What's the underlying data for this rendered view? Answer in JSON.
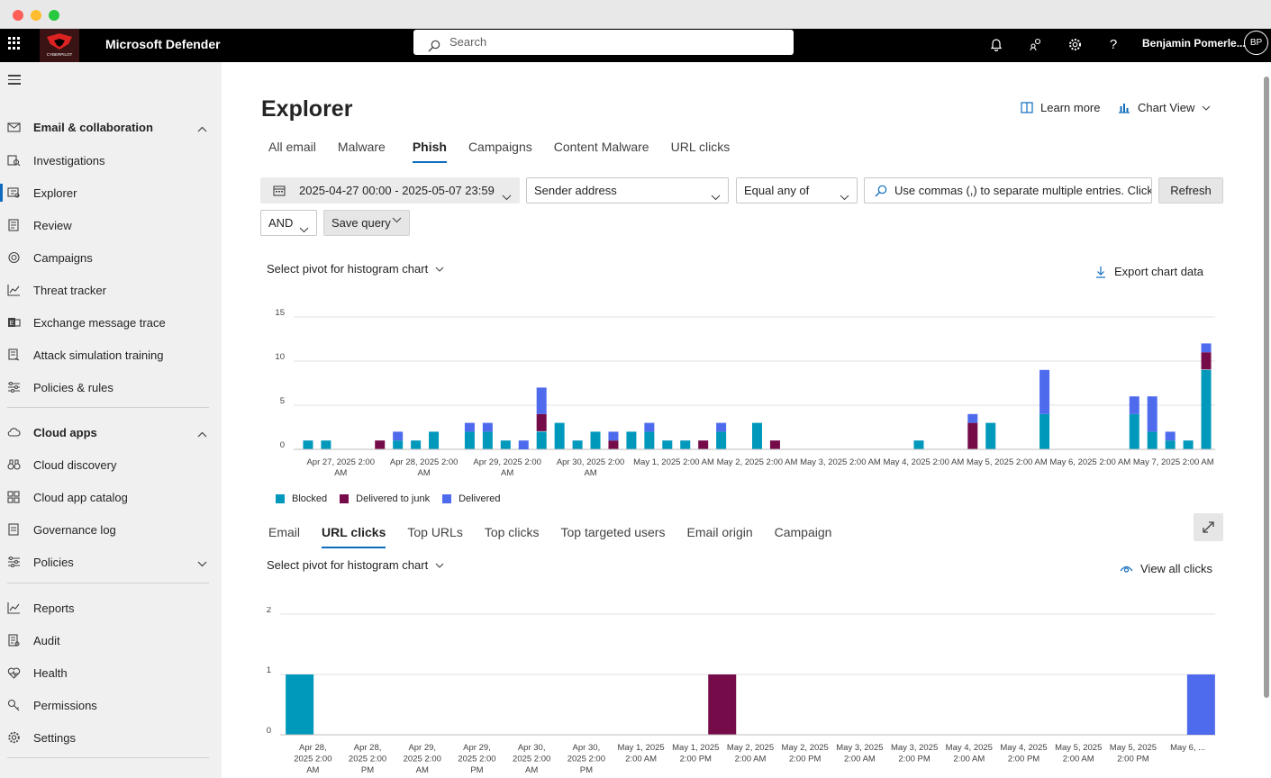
{
  "topbar": {
    "app_title": "Microsoft Defender",
    "logo_text": "CYBERPILOT",
    "search_placeholder": "Search",
    "user_name": "Benjamin Pomerle...",
    "user_initials": "BP"
  },
  "sidebar": {
    "items": [
      {
        "label": "Email & collaboration",
        "icon": "mail-icon",
        "section": true,
        "expanded": true
      },
      {
        "label": "Investigations",
        "icon": "investigation-icon"
      },
      {
        "label": "Explorer",
        "icon": "explorer-icon",
        "active": true
      },
      {
        "label": "Review",
        "icon": "review-icon"
      },
      {
        "label": "Campaigns",
        "icon": "target-icon"
      },
      {
        "label": "Threat tracker",
        "icon": "chart-line-icon"
      },
      {
        "label": "Exchange message trace",
        "icon": "exchange-icon"
      },
      {
        "label": "Attack simulation training",
        "icon": "simulation-icon"
      },
      {
        "label": "Policies & rules",
        "icon": "sliders-icon"
      },
      {
        "label": "Cloud apps",
        "icon": "cloud-icon",
        "section": true,
        "expanded": true
      },
      {
        "label": "Cloud discovery",
        "icon": "binoculars-icon"
      },
      {
        "label": "Cloud app catalog",
        "icon": "catalog-icon"
      },
      {
        "label": "Governance log",
        "icon": "log-icon"
      },
      {
        "label": "Policies",
        "icon": "sliders-icon",
        "collapsible": true
      },
      {
        "label": "Reports",
        "icon": "chart-line-icon"
      },
      {
        "label": "Audit",
        "icon": "audit-icon"
      },
      {
        "label": "Health",
        "icon": "heart-icon"
      },
      {
        "label": "Permissions",
        "icon": "key-icon"
      },
      {
        "label": "Settings",
        "icon": "gear-icon"
      }
    ]
  },
  "main": {
    "title": "Explorer",
    "learn_more": "Learn more",
    "chart_view": "Chart View",
    "tabs": [
      {
        "label": "All email"
      },
      {
        "label": "Malware"
      },
      {
        "label": "Phish",
        "active": true
      },
      {
        "label": "Campaigns"
      },
      {
        "label": "Content Malware"
      },
      {
        "label": "URL clicks"
      }
    ],
    "filters": {
      "date_range": "2025-04-27 00:00 - 2025-05-07 23:59",
      "field": "Sender address",
      "operator": "Equal any of",
      "value_placeholder": "Use commas (,) to separate multiple entries. Click ...",
      "refresh": "Refresh",
      "logic": "AND",
      "save_query": "Save query"
    },
    "pivot_label": "Select pivot for histogram chart",
    "export_label": "Export chart data",
    "sub_tabs": [
      {
        "label": "Email"
      },
      {
        "label": "URL clicks",
        "active": true
      },
      {
        "label": "Top URLs"
      },
      {
        "label": "Top clicks"
      },
      {
        "label": "Top targeted users"
      },
      {
        "label": "Email origin"
      },
      {
        "label": "Campaign"
      }
    ],
    "pivot_label_2": "Select pivot for histogram chart",
    "view_all_clicks": "View all clicks"
  },
  "colors": {
    "blocked": "#0099bc",
    "junk": "#750b49",
    "delivered": "#4f6bed",
    "accent": "#0f6cbd"
  },
  "chart_data": [
    {
      "type": "bar",
      "stacked": true,
      "ylim": [
        0,
        15
      ],
      "yticks": [
        0,
        5,
        10,
        15
      ],
      "x_tick_labels": [
        [
          "Apr 27, 2025 2:00",
          "AM"
        ],
        [
          "Apr 28, 2025 2:00",
          "AM"
        ],
        [
          "Apr 29, 2025 2:00",
          "AM"
        ],
        [
          "Apr 30, 2025 2:00",
          "AM"
        ],
        [
          "May 1, 2025 2:00 AM"
        ],
        [
          "May 2, 2025 2:00 AM"
        ],
        [
          "May 3, 2025 2:00 AM"
        ],
        [
          "May 4, 2025 2:00 AM"
        ],
        [
          "May 5, 2025 2:00 AM"
        ],
        [
          "May 6, 2025 2:00 AM"
        ],
        [
          "May 7, 2025 2:00 AM"
        ]
      ],
      "legend": [
        "Blocked",
        "Delivered to junk",
        "Delivered"
      ],
      "series": [
        {
          "name": "Blocked",
          "values": [
            1,
            1,
            0,
            0,
            0,
            1,
            1,
            2,
            0,
            2,
            2,
            1,
            0,
            2,
            3,
            1,
            2,
            0,
            2,
            2,
            1,
            1,
            0,
            2,
            0,
            3,
            0,
            0,
            0,
            0,
            0,
            0,
            0,
            0,
            1,
            0,
            0,
            0,
            3,
            0,
            0,
            4,
            0,
            0,
            0,
            0,
            4,
            2,
            1,
            1,
            9
          ]
        },
        {
          "name": "Delivered to junk",
          "values": [
            0,
            0,
            0,
            0,
            1,
            0,
            0,
            0,
            0,
            0,
            0,
            0,
            0,
            2,
            0,
            0,
            0,
            1,
            0,
            0,
            0,
            0,
            1,
            0,
            0,
            0,
            1,
            0,
            0,
            0,
            0,
            0,
            0,
            0,
            0,
            0,
            0,
            3,
            0,
            0,
            0,
            0,
            0,
            0,
            0,
            0,
            0,
            0,
            0,
            0,
            2
          ]
        },
        {
          "name": "Delivered",
          "values": [
            0,
            0,
            0,
            0,
            0,
            1,
            0,
            0,
            0,
            1,
            1,
            0,
            1,
            3,
            0,
            0,
            0,
            1,
            0,
            1,
            0,
            0,
            0,
            1,
            0,
            0,
            0,
            0,
            0,
            0,
            0,
            0,
            0,
            0,
            0,
            0,
            0,
            1,
            0,
            0,
            0,
            5,
            0,
            0,
            0,
            0,
            2,
            4,
            1,
            0,
            1
          ]
        }
      ]
    },
    {
      "type": "bar",
      "stacked": true,
      "ylim": [
        0,
        2
      ],
      "yticks": [
        0,
        1,
        2
      ],
      "x_tick_labels": [
        [
          "Apr 28,",
          "2025 2:00",
          "AM"
        ],
        [
          "Apr 28,",
          "2025 2:00",
          "PM"
        ],
        [
          "Apr 29,",
          "2025 2:00",
          "AM"
        ],
        [
          "Apr 29,",
          "2025 2:00",
          "PM"
        ],
        [
          "Apr 30,",
          "2025 2:00",
          "AM"
        ],
        [
          "Apr 30,",
          "2025 2:00",
          "PM"
        ],
        [
          "May 1, 2025",
          "2:00 AM"
        ],
        [
          "May 1, 2025",
          "2:00 PM"
        ],
        [
          "May 2, 2025",
          "2:00 AM"
        ],
        [
          "May 2, 2025",
          "2:00 PM"
        ],
        [
          "May 3, 2025",
          "2:00 AM"
        ],
        [
          "May 3, 2025",
          "2:00 PM"
        ],
        [
          "May 4, 2025",
          "2:00 AM"
        ],
        [
          "May 4, 2025",
          "2:00 PM"
        ],
        [
          "May 5, 2025",
          "2:00 AM"
        ],
        [
          "May 5, 2025",
          "2:00 PM"
        ],
        [
          "May 6, ..."
        ]
      ],
      "series": [
        {
          "name": "Blocked",
          "values": [
            1,
            0,
            0,
            0,
            0,
            0,
            0,
            0,
            0,
            0,
            0,
            0,
            0,
            0,
            0,
            0,
            0,
            0,
            0,
            0,
            0,
            0,
            0,
            0,
            0,
            0,
            0,
            0,
            0,
            0,
            0,
            0,
            0
          ]
        },
        {
          "name": "Delivered to junk",
          "values": [
            0,
            0,
            0,
            0,
            0,
            0,
            0,
            0,
            0,
            0,
            0,
            0,
            0,
            0,
            0,
            1,
            0,
            0,
            0,
            0,
            0,
            0,
            0,
            0,
            0,
            0,
            0,
            0,
            0,
            0,
            0,
            0,
            0
          ]
        },
        {
          "name": "Delivered",
          "values": [
            0,
            0,
            0,
            0,
            0,
            0,
            0,
            0,
            0,
            0,
            0,
            0,
            0,
            0,
            0,
            0,
            0,
            0,
            0,
            0,
            0,
            0,
            0,
            0,
            0,
            0,
            0,
            0,
            0,
            0,
            0,
            0,
            1
          ]
        }
      ]
    }
  ]
}
